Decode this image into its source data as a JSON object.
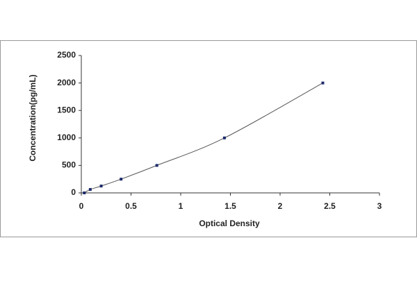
{
  "chart_data": {
    "type": "scatter",
    "x_label": "Optical Density",
    "y_label": "Concentration(pg/mL)",
    "series": [
      {
        "color": "#1c2a6b",
        "line": true,
        "x": [
          0.03,
          0.09,
          0.2,
          0.4,
          0.76,
          1.44,
          2.43
        ],
        "values": [
          0,
          62.5,
          125,
          250,
          500,
          1000,
          2000
        ]
      }
    ],
    "xlim": [
      0,
      3
    ],
    "xticks": [
      0,
      0.5,
      1,
      1.5,
      2,
      2.5,
      3
    ],
    "ylim": [
      0,
      2500
    ],
    "yticks": [
      0,
      500,
      1000,
      1500,
      2000,
      2500
    ],
    "grid": false
  }
}
